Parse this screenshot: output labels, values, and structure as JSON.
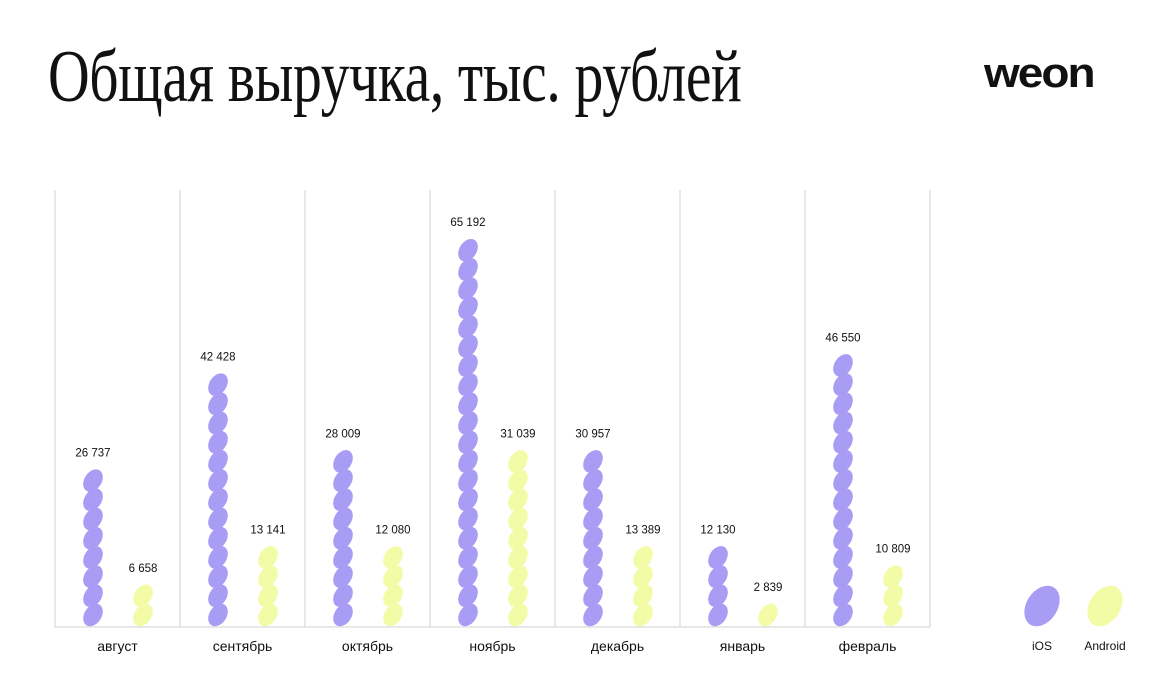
{
  "title": "Общая выручка,  тыс. рублей",
  "logo": "weon",
  "colors": {
    "ios": "#a99cf4",
    "android": "#f2fca6",
    "grid": "#d2d2d2"
  },
  "legend": {
    "ios": "iOS",
    "android": "Android"
  },
  "chart_data": {
    "type": "bar",
    "title": "Общая выручка,  тыс. рублей",
    "categories": [
      "август",
      "сентябрь",
      "октябрь",
      "ноябрь",
      "декабрь",
      "январь",
      "февраль"
    ],
    "series": [
      {
        "name": "iOS",
        "values": [
          26737,
          42428,
          28009,
          65192,
          30957,
          12130,
          46550
        ],
        "labels": [
          "26 737",
          "42 428",
          "28 009",
          "65 192",
          "30 957",
          "12 130",
          "46 550"
        ]
      },
      {
        "name": "Android",
        "values": [
          6658,
          13141,
          12080,
          31039,
          13389,
          2839,
          10809
        ],
        "labels": [
          "6 658",
          "13 141",
          "12 080",
          "31 039",
          "13 389",
          "2 839",
          "10 809"
        ]
      }
    ],
    "legend_position": "bottom-right",
    "grid": true
  }
}
